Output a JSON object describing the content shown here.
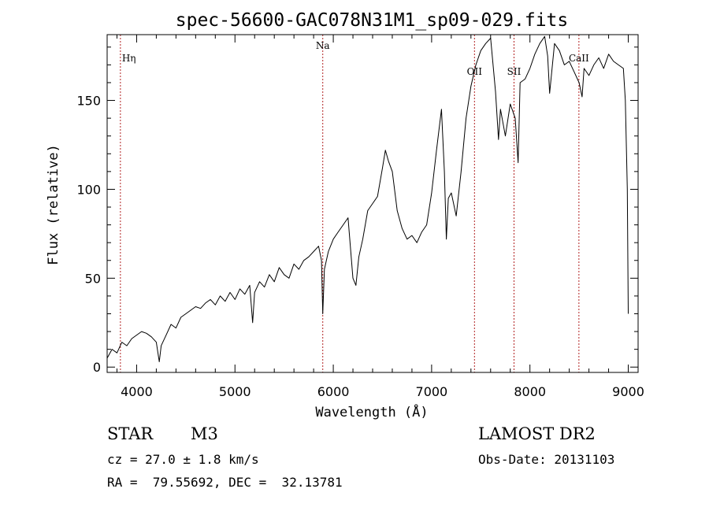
{
  "chart_data": {
    "type": "line",
    "title": "spec-56600-GAC078N31M1_sp09-029.fits",
    "xlabel": "Wavelength (Å)",
    "ylabel": "Flux (relative)",
    "xlim": [
      3700,
      9100
    ],
    "ylim": [
      -3,
      187
    ],
    "xticks": [
      4000,
      5000,
      6000,
      7000,
      8000,
      9000
    ],
    "yticks": [
      0,
      50,
      100,
      150
    ],
    "series": [
      {
        "x": [
          3700,
          3750,
          3800,
          3850,
          3900,
          3950,
          4000,
          4050,
          4100,
          4150,
          4200,
          4230,
          4250,
          4300,
          4350,
          4400,
          4450,
          4500,
          4550,
          4600,
          4650,
          4700,
          4750,
          4800,
          4850,
          4900,
          4950,
          5000,
          5050,
          5100,
          5150,
          5180,
          5200,
          5250,
          5300,
          5350,
          5400,
          5450,
          5500,
          5550,
          5600,
          5650,
          5700,
          5750,
          5800,
          5850,
          5880,
          5893,
          5910,
          5950,
          6000,
          6050,
          6100,
          6150,
          6200,
          6230,
          6260,
          6300,
          6350,
          6400,
          6450,
          6500,
          6530,
          6560,
          6600,
          6650,
          6700,
          6750,
          6800,
          6850,
          6900,
          6950,
          7000,
          7050,
          7100,
          7130,
          7150,
          7170,
          7200,
          7250,
          7300,
          7350,
          7400,
          7450,
          7500,
          7550,
          7600,
          7650,
          7680,
          7700,
          7750,
          7800,
          7850,
          7880,
          7900,
          7950,
          8000,
          8050,
          8100,
          8150,
          8180,
          8200,
          8250,
          8300,
          8350,
          8400,
          8450,
          8500,
          8530,
          8550,
          8600,
          8650,
          8700,
          8750,
          8800,
          8850,
          8900,
          8950,
          8970,
          8990,
          9000
        ],
        "y": [
          5,
          10,
          8,
          14,
          12,
          16,
          18,
          20,
          19,
          17,
          14,
          3,
          12,
          18,
          24,
          22,
          28,
          30,
          32,
          34,
          33,
          36,
          38,
          35,
          40,
          37,
          42,
          38,
          44,
          41,
          46,
          25,
          42,
          48,
          45,
          52,
          48,
          56,
          52,
          50,
          58,
          55,
          60,
          62,
          65,
          68,
          60,
          30,
          55,
          65,
          72,
          76,
          80,
          84,
          50,
          46,
          62,
          72,
          88,
          92,
          96,
          112,
          122,
          116,
          110,
          88,
          78,
          72,
          74,
          70,
          76,
          80,
          98,
          122,
          145,
          110,
          72,
          95,
          98,
          85,
          110,
          140,
          158,
          170,
          178,
          182,
          185,
          155,
          128,
          145,
          130,
          148,
          140,
          115,
          160,
          162,
          168,
          176,
          182,
          186,
          175,
          154,
          182,
          178,
          170,
          172,
          166,
          160,
          152,
          168,
          164,
          170,
          174,
          168,
          176,
          172,
          170,
          168,
          150,
          100,
          30
        ]
      }
    ],
    "lines": [
      {
        "wavelength": 3835,
        "label": "Hη"
      },
      {
        "wavelength": 5893,
        "label": "Na"
      },
      {
        "wavelength": 7436,
        "label": "OII"
      },
      {
        "wavelength": 7838,
        "label": "SII"
      },
      {
        "wavelength": 8498,
        "label": "CaII"
      }
    ],
    "grid": false
  },
  "info": {
    "class": "STAR",
    "subclass": "M3",
    "cz": "cz = 27.0 ± 1.8 km/s",
    "radec": "RA =  79.55692, DEC =  32.13781",
    "survey": "LAMOST DR2",
    "obsdate": "Obs-Date: 20131103"
  }
}
